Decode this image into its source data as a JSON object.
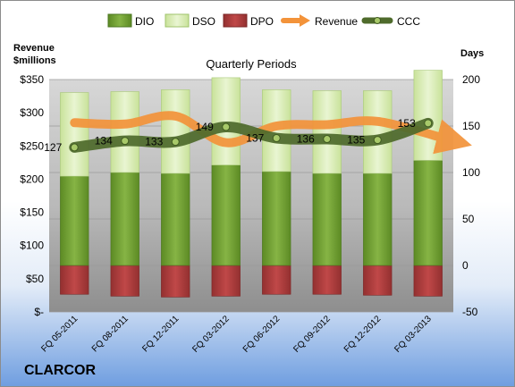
{
  "company": "CLARCOR",
  "chart_data": {
    "type": "bar",
    "title": "Quarterly Periods",
    "left_axis_label": [
      "Revenue",
      "$millions"
    ],
    "right_axis_label": "Days",
    "categories": [
      "FQ 05-2011",
      "FQ 08-2011",
      "FQ 12-2011",
      "FQ 03-2012",
      "FQ 06-2012",
      "FQ 09-2012",
      "FQ 12-2012",
      "FQ 03-2013"
    ],
    "left_axis": {
      "min": 0,
      "max": 350,
      "step": 50,
      "ticks": [
        "$-",
        "$50",
        "$100",
        "$150",
        "$200",
        "$250",
        "$300",
        "$350"
      ]
    },
    "right_axis": {
      "min": -50,
      "max": 200,
      "step": 50,
      "ticks": [
        "-50",
        "0",
        "50",
        "100",
        "150",
        "200"
      ]
    },
    "series": [
      {
        "name": "DIO",
        "axis": "right",
        "color": "#6d9a2e",
        "values": [
          96,
          100,
          99,
          108,
          101,
          99,
          99,
          113
        ]
      },
      {
        "name": "DSO",
        "axis": "right",
        "color": "#d9edb4",
        "values": [
          90,
          87,
          90,
          94,
          88,
          89,
          89,
          97
        ]
      },
      {
        "name": "DPO",
        "axis": "right",
        "color": "#b03a3a",
        "values": [
          -31,
          -33,
          -34,
          -33,
          -31,
          -31,
          -32,
          -33
        ]
      },
      {
        "name": "Revenue",
        "axis": "left",
        "color": "#f3933a",
        "values": [
          285,
          283,
          295,
          255,
          280,
          282,
          287,
          260
        ]
      },
      {
        "name": "CCC",
        "axis": "right",
        "color": "#4f6b2c",
        "values": [
          127,
          134,
          133,
          149,
          137,
          136,
          135,
          153
        ]
      }
    ],
    "ccc_labels": [
      "127",
      "134",
      "133",
      "149",
      "137",
      "136",
      "135",
      "153"
    ],
    "legend_position": "top"
  }
}
